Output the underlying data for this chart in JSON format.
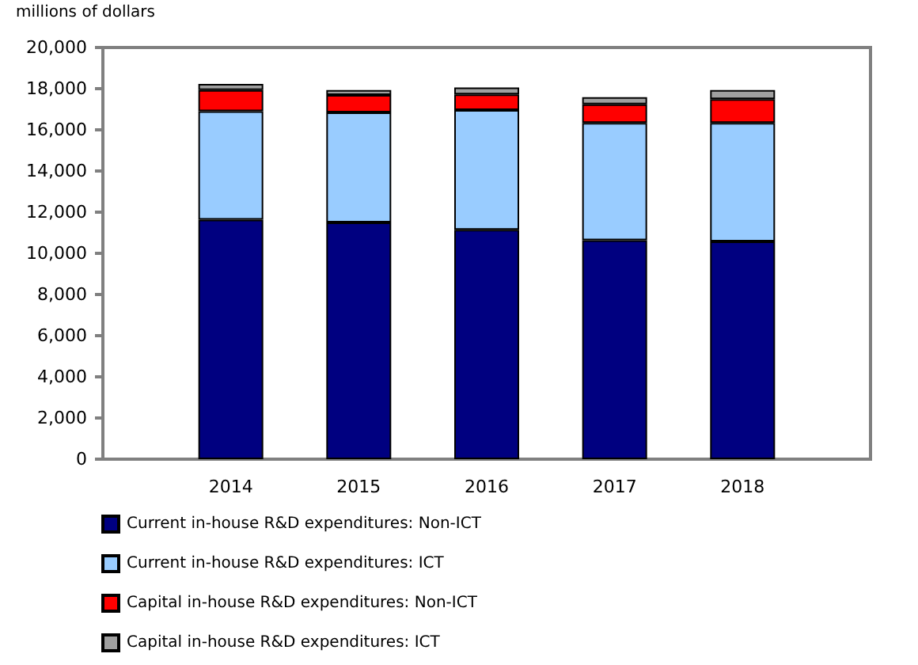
{
  "chart_data": {
    "type": "bar",
    "ylabel": "millions of dollars",
    "categories": [
      "2014",
      "2015",
      "2016",
      "2017",
      "2018"
    ],
    "stacked": true,
    "series": [
      {
        "name": "Current in-house R&D expenditures: Non-ICT",
        "color": "#000080",
        "values": [
          11630,
          11500,
          11140,
          10630,
          10580
        ]
      },
      {
        "name": "Current in-house R&D expenditures: ICT",
        "color": "#99ccff",
        "values": [
          5270,
          5350,
          5820,
          5710,
          5760
        ]
      },
      {
        "name": "Capital in-house R&D expenditures: Non-ICT",
        "color": "#ff0000",
        "values": [
          1030,
          840,
          760,
          900,
          1150
        ]
      },
      {
        "name": "Capital in-house R&D expenditures: ICT",
        "color": "#a0a0a0",
        "values": [
          300,
          240,
          340,
          350,
          440
        ]
      }
    ],
    "ylim": [
      0,
      20000
    ],
    "yticks": [
      {
        "value": 0,
        "label": "0"
      },
      {
        "value": 2000,
        "label": "2,000"
      },
      {
        "value": 4000,
        "label": "4,000"
      },
      {
        "value": 6000,
        "label": "6,000"
      },
      {
        "value": 8000,
        "label": "8,000"
      },
      {
        "value": 10000,
        "label": "10,000"
      },
      {
        "value": 12000,
        "label": "12,000"
      },
      {
        "value": 14000,
        "label": "14,000"
      },
      {
        "value": 16000,
        "label": "16,000"
      },
      {
        "value": 18000,
        "label": "18,000"
      },
      {
        "value": 20000,
        "label": "20,000"
      }
    ],
    "legend": "bottom left"
  }
}
